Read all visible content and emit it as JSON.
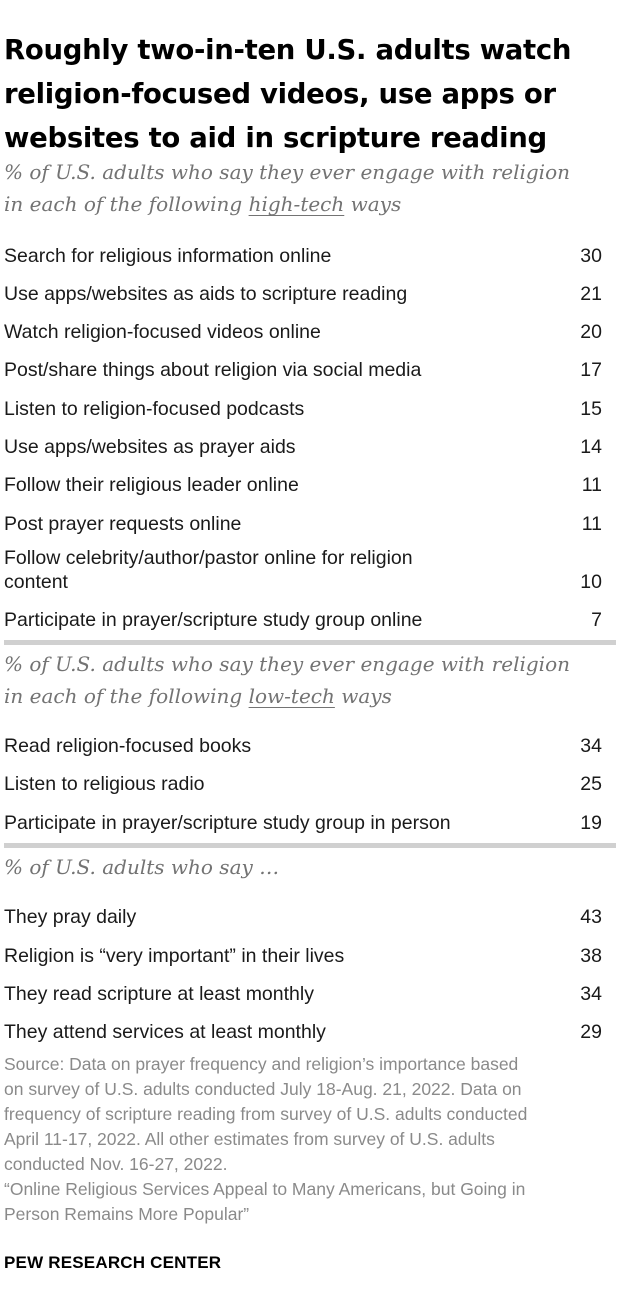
{
  "title": {
    "line1": "Roughly two-in-ten U.S. adults watch",
    "line2": "religion-focused videos, use apps or",
    "line3": "websites to aid in scripture reading"
  },
  "chart_data": {
    "type": "table",
    "sections": [
      {
        "subtitle_line1": "% of U.S. adults who say they ever engage with religion",
        "subtitle_line2_pre": "in each of the following ",
        "subtitle_line2_em": "high-tech",
        "subtitle_line2_post": " ways",
        "rows": [
          {
            "label": "Search for religious information online",
            "value": 30
          },
          {
            "label": "Use apps/websites as aids to scripture reading",
            "value": 21
          },
          {
            "label": "Watch religion-focused videos online",
            "value": 20
          },
          {
            "label": "Post/share things about religion via social media",
            "value": 17
          },
          {
            "label": "Listen to religion-focused podcasts",
            "value": 15
          },
          {
            "label": "Use apps/websites as prayer aids",
            "value": 14
          },
          {
            "label": "Follow their religious leader online",
            "value": 11
          },
          {
            "label": "Post prayer requests online",
            "value": 11
          },
          {
            "label": "Follow celebrity/author/pastor online for religion content",
            "label_line1": "Follow celebrity/author/pastor online for religion",
            "label_line2": "content",
            "value": 10
          },
          {
            "label": "Participate in prayer/scripture study group online",
            "value": 7
          }
        ]
      },
      {
        "subtitle_line1": "% of U.S. adults who say they ever engage with religion",
        "subtitle_line2_pre": "in each of the following ",
        "subtitle_line2_em": "low-tech",
        "subtitle_line2_post": " ways",
        "rows": [
          {
            "label": "Read religion-focused books",
            "value": 34
          },
          {
            "label": "Listen to religious radio",
            "value": 25
          },
          {
            "label": "Participate in prayer/scripture study group in person",
            "value": 19
          }
        ]
      },
      {
        "subtitle_line1": "% of U.S. adults who say …",
        "rows": [
          {
            "label": "They pray daily",
            "value": 43
          },
          {
            "label": "Religion is “very important” in their lives",
            "value": 38
          },
          {
            "label": "They read scripture at least monthly",
            "value": 34
          },
          {
            "label": "They attend services at least monthly",
            "value": 29
          }
        ]
      }
    ]
  },
  "source": {
    "line1": "Source: Data on prayer frequency and religion’s importance based",
    "line2": "on survey of U.S. adults conducted July 18-Aug. 21, 2022. Data on",
    "line3": "frequency of scripture reading from survey of U.S. adults conducted",
    "line4": "April 11-17, 2022. All other estimates from survey of U.S. adults",
    "line5": "conducted Nov. 16-27, 2022.",
    "line6": "“Online Religious Services Appeal to Many Americans, but Going in",
    "line7": "Person Remains More Popular”"
  },
  "brand": "PEW RESEARCH CENTER"
}
